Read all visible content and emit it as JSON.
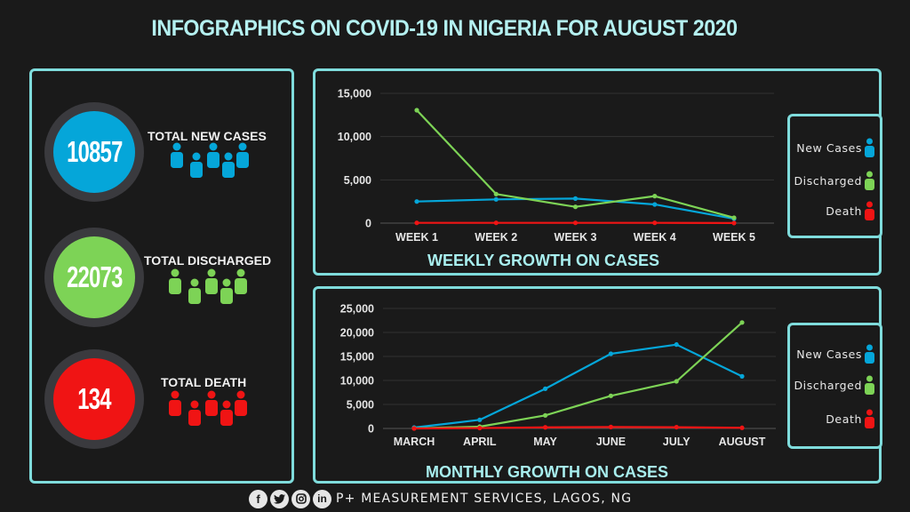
{
  "title": "INFOGRAPHICS ON COVID-19 IN NIGERIA FOR AUGUST 2020",
  "colors": {
    "new_cases": "#05a6d9",
    "discharged": "#7dd356",
    "death": "#f01414",
    "accent": "#7fdcdc",
    "title_text": "#b4f0f0"
  },
  "stats": [
    {
      "value": "10857",
      "label": "TOTAL NEW CASES",
      "color": "#05a6d9",
      "icon": "people-group-icon"
    },
    {
      "value": "22073",
      "label": "TOTAL DISCHARGED",
      "color": "#7dd356",
      "icon": "people-group-icon"
    },
    {
      "value": "134",
      "label": "TOTAL DEATH",
      "color": "#f01414",
      "icon": "people-group-icon"
    }
  ],
  "legend": [
    {
      "label": "New Cases",
      "color": "#05a6d9",
      "icon": "person-icon"
    },
    {
      "label": "Discharged",
      "color": "#7dd356",
      "icon": "person-icon"
    },
    {
      "label": "Death",
      "color": "#f01414",
      "icon": "person-icon"
    }
  ],
  "footer": {
    "text": "P+ MEASUREMENT SERVICES, LAGOS, NG",
    "social": [
      {
        "icon": "facebook-icon",
        "glyph": "f"
      },
      {
        "icon": "twitter-icon",
        "glyph": "t"
      },
      {
        "icon": "instagram-icon",
        "glyph": "◙"
      },
      {
        "icon": "linkedin-icon",
        "glyph": "in"
      }
    ]
  },
  "chart_data": [
    {
      "type": "line",
      "title": "WEEKLY GROWTH ON CASES",
      "categories": [
        "WEEK 1",
        "WEEK 2",
        "WEEK 3",
        "WEEK 4",
        "WEEK 5"
      ],
      "series": [
        {
          "name": "New Cases",
          "color": "#05a6d9",
          "values": [
            2500,
            2740,
            2840,
            2160,
            510
          ]
        },
        {
          "name": "Discharged",
          "color": "#7dd356",
          "values": [
            13050,
            3360,
            1880,
            3120,
            620
          ]
        },
        {
          "name": "Death",
          "color": "#f01414",
          "values": [
            30,
            30,
            30,
            30,
            10
          ]
        }
      ],
      "yticks": [
        0,
        5000,
        10000,
        15000
      ],
      "ytick_labels": [
        "0",
        "5,000",
        "10,000",
        "15,000"
      ],
      "ylim": [
        0,
        15000
      ],
      "grid": true,
      "legend_position": "right"
    },
    {
      "type": "line",
      "title": "MONTHLY GROWTH ON CASES",
      "categories": [
        "MARCH",
        "APRIL",
        "MAY",
        "JUNE",
        "JULY",
        "AUGUST"
      ],
      "series": [
        {
          "name": "New Cases",
          "color": "#05a6d9",
          "values": [
            180,
            1790,
            8270,
            15560,
            17470,
            10857
          ]
        },
        {
          "name": "Discharged",
          "color": "#7dd356",
          "values": [
            30,
            370,
            2720,
            6790,
            9810,
            22073
          ]
        },
        {
          "name": "Death",
          "color": "#f01414",
          "values": [
            2,
            80,
            230,
            300,
            260,
            134
          ]
        }
      ],
      "yticks": [
        0,
        5000,
        10000,
        15000,
        20000,
        25000
      ],
      "ytick_labels": [
        "0",
        "5,000",
        "10,000",
        "15,000",
        "20,000",
        "25,000"
      ],
      "ylim": [
        0,
        25000
      ],
      "grid": true,
      "legend_position": "right"
    }
  ]
}
